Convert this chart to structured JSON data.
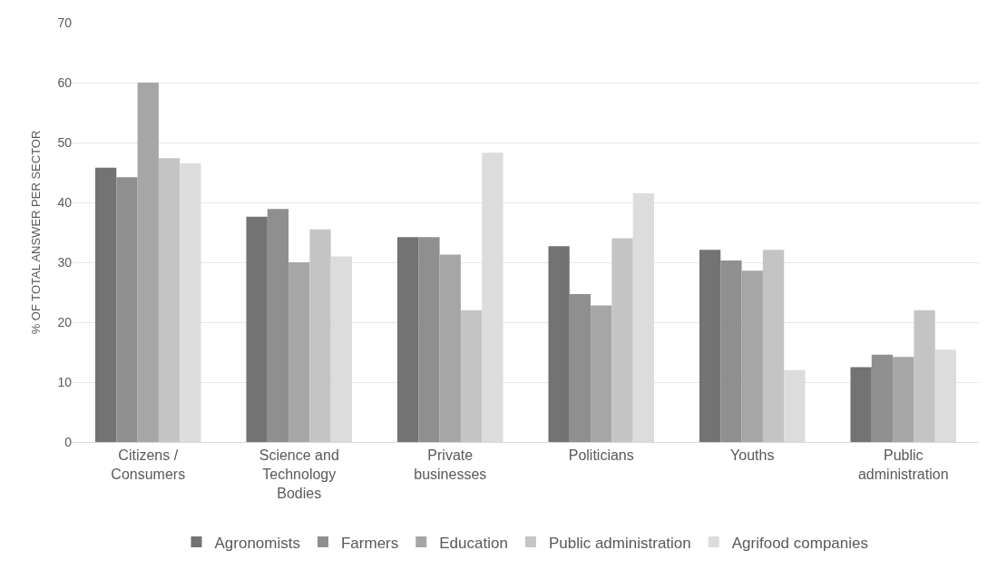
{
  "chart_data": {
    "type": "bar",
    "ylabel": "% OF TOTAL ANSWER PER SECTOR",
    "categories": [
      "Citizens / Consumers",
      "Science and Technology Bodies",
      "Private businesses",
      "Politicians",
      "Youths",
      "Public administration"
    ],
    "series": [
      {
        "name": "Agronomists",
        "color": "#737373",
        "values": [
          45.8,
          37.6,
          34.2,
          32.7,
          32.1,
          12.5
        ]
      },
      {
        "name": "Farmers",
        "color": "#8f8f8f",
        "values": [
          44.2,
          38.9,
          34.2,
          24.7,
          30.3,
          14.6
        ]
      },
      {
        "name": "Education",
        "color": "#a6a6a6",
        "values": [
          60,
          30,
          31.3,
          22.8,
          28.6,
          14.2
        ]
      },
      {
        "name": "Public administration",
        "color": "#c4c4c4",
        "values": [
          47.4,
          35.5,
          22,
          34,
          32.1,
          22
        ]
      },
      {
        "name": "Agrifood companies",
        "color": "#dcdcdc",
        "values": [
          46.5,
          31,
          48.3,
          41.5,
          12,
          15.4
        ]
      }
    ],
    "ylim": [
      0,
      70
    ],
    "yticks": [
      0,
      10,
      20,
      30,
      40,
      50,
      60,
      70
    ],
    "grid": "y",
    "legend": "bottom"
  }
}
